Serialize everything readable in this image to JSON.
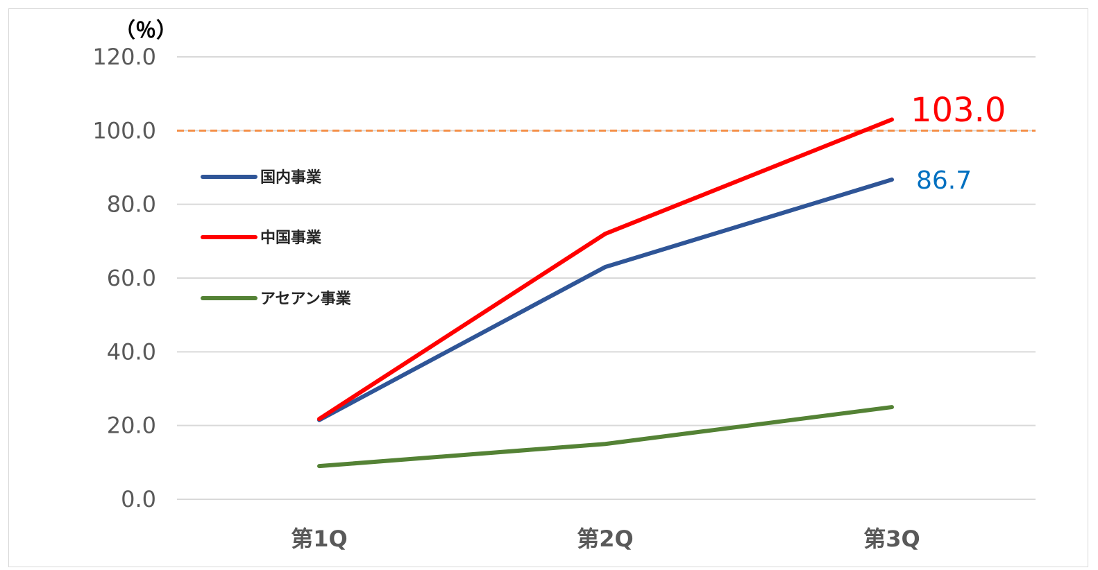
{
  "chart_data": {
    "type": "line",
    "title": "",
    "xlabel": "",
    "ylabel": "（％）",
    "categories": [
      "第1Q",
      "第2Q",
      "第3Q"
    ],
    "ylim": [
      0,
      120
    ],
    "yticks": [
      "0.0",
      "20.0",
      "40.0",
      "60.0",
      "80.0",
      "100.0",
      "120.0"
    ],
    "grid": true,
    "legend_position": "left",
    "reference_line": {
      "value": 100.0,
      "color": "#F4904A",
      "style": "dashed"
    },
    "series": [
      {
        "name": "国内事業",
        "values": [
          21.5,
          63.0,
          86.7
        ],
        "color": "#2F5597",
        "end_label": "86.7",
        "end_label_color": "#0070C0"
      },
      {
        "name": "中国事業",
        "values": [
          21.8,
          72.0,
          103.0
        ],
        "color": "#FF0000",
        "end_label": "103.0",
        "end_label_color": "#FF0000"
      },
      {
        "name": "アセアン事業",
        "values": [
          9.0,
          15.0,
          25.0
        ],
        "color": "#548235"
      }
    ]
  }
}
